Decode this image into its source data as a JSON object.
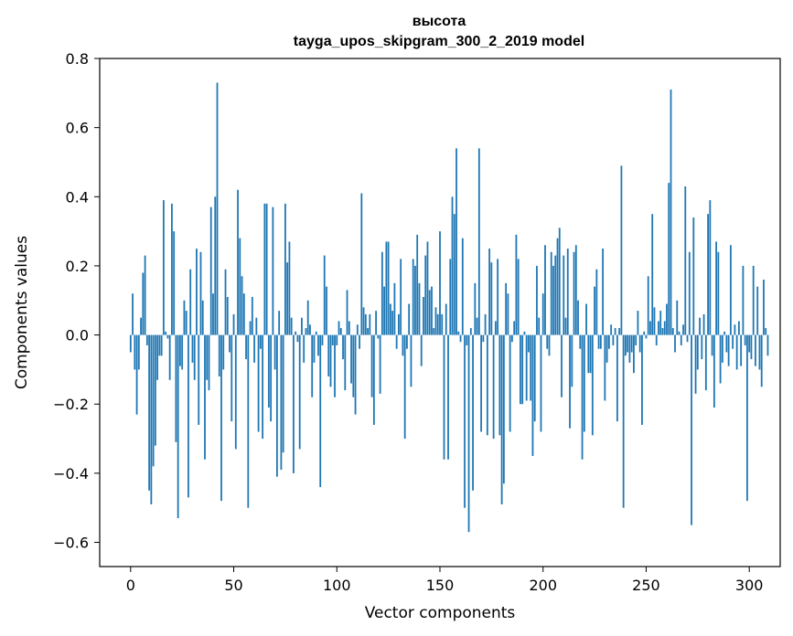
{
  "chart_data": {
    "type": "bar",
    "title": "высота",
    "subtitle": "tayga_upos_skipgram_300_2_2019 model",
    "xlabel": "Vector components",
    "ylabel": "Components values",
    "xlim": [
      -15,
      315
    ],
    "ylim": [
      -0.67,
      0.8
    ],
    "xticks": [
      0,
      50,
      100,
      150,
      200,
      250,
      300
    ],
    "xtick_labels": [
      "0",
      "50",
      "100",
      "150",
      "200",
      "250",
      "300"
    ],
    "yticks": [
      -0.6,
      -0.4,
      -0.2,
      0.0,
      0.2,
      0.4,
      0.6,
      0.8
    ],
    "ytick_labels": [
      "−0.6",
      "−0.4",
      "−0.2",
      "0.0",
      "0.2",
      "0.4",
      "0.6",
      "0.8"
    ],
    "bar_color": "#1f77b4",
    "values": [
      -0.05,
      0.12,
      -0.1,
      -0.23,
      -0.1,
      0.05,
      0.18,
      0.23,
      -0.03,
      -0.45,
      -0.49,
      -0.38,
      -0.32,
      -0.13,
      -0.06,
      -0.06,
      0.39,
      0.01,
      -0.01,
      -0.13,
      0.38,
      0.3,
      -0.31,
      -0.53,
      -0.09,
      -0.1,
      0.1,
      0.07,
      -0.47,
      0.19,
      -0.08,
      -0.13,
      0.25,
      -0.26,
      0.24,
      0.1,
      -0.36,
      -0.13,
      -0.16,
      0.37,
      0.12,
      0.4,
      0.73,
      -0.12,
      -0.48,
      -0.1,
      0.19,
      0.11,
      -0.05,
      -0.25,
      0.06,
      -0.33,
      0.42,
      0.28,
      0.17,
      0.12,
      -0.07,
      -0.5,
      0.04,
      0.11,
      -0.08,
      0.05,
      -0.28,
      -0.04,
      -0.3,
      0.38,
      0.38,
      -0.21,
      -0.25,
      0.37,
      -0.1,
      -0.41,
      0.07,
      -0.39,
      -0.34,
      0.38,
      0.21,
      0.27,
      0.05,
      -0.4,
      0.01,
      -0.02,
      -0.33,
      0.05,
      -0.08,
      0.02,
      0.1,
      0.03,
      -0.18,
      -0.08,
      0.01,
      -0.06,
      -0.44,
      -0.03,
      0.23,
      0.14,
      -0.12,
      -0.15,
      -0.03,
      -0.18,
      -0.03,
      0.04,
      0.02,
      -0.07,
      -0.16,
      0.13,
      0.04,
      -0.14,
      -0.18,
      -0.23,
      0.03,
      -0.04,
      0.41,
      0.08,
      0.06,
      0.02,
      0.06,
      -0.18,
      -0.26,
      0.07,
      -0.01,
      -0.17,
      0.24,
      0.14,
      0.27,
      0.27,
      0.09,
      0.07,
      0.15,
      -0.04,
      0.06,
      0.22,
      -0.06,
      -0.3,
      -0.04,
      0.09,
      -0.15,
      0.22,
      0.2,
      0.29,
      0.15,
      -0.09,
      0.11,
      0.23,
      0.27,
      0.13,
      0.14,
      0.02,
      0.08,
      0.06,
      0.3,
      0.06,
      -0.36,
      0.09,
      -0.36,
      0.22,
      0.4,
      0.35,
      0.54,
      0.01,
      -0.02,
      0.28,
      -0.5,
      -0.03,
      -0.57,
      0.02,
      -0.45,
      0.15,
      0.05,
      0.54,
      -0.28,
      -0.02,
      0.06,
      -0.29,
      0.25,
      0.21,
      -0.3,
      0.04,
      0.22,
      -0.29,
      -0.49,
      -0.43,
      0.15,
      0.12,
      -0.28,
      -0.02,
      0.04,
      0.29,
      0.22,
      -0.2,
      -0.2,
      0.01,
      -0.19,
      -0.05,
      -0.19,
      -0.35,
      -0.25,
      0.2,
      0.05,
      -0.28,
      0.12,
      0.26,
      -0.04,
      -0.06,
      0.24,
      0.2,
      0.23,
      0.28,
      0.31,
      -0.18,
      0.23,
      0.05,
      0.25,
      -0.27,
      -0.15,
      0.24,
      0.26,
      0.1,
      -0.04,
      -0.36,
      -0.28,
      0.09,
      -0.11,
      -0.11,
      -0.29,
      0.14,
      0.19,
      -0.04,
      -0.04,
      0.25,
      -0.19,
      -0.08,
      -0.04,
      0.03,
      -0.03,
      0.02,
      -0.25,
      0.02,
      0.49,
      -0.5,
      -0.06,
      -0.05,
      -0.08,
      -0.05,
      -0.11,
      -0.03,
      0.07,
      -0.05,
      -0.26,
      0.01,
      -0.01,
      0.17,
      0.04,
      0.35,
      0.08,
      -0.03,
      0.04,
      0.07,
      0.02,
      0.04,
      0.09,
      0.44,
      0.71,
      0.02,
      -0.05,
      0.1,
      0.01,
      -0.03,
      0.03,
      0.43,
      -0.02,
      0.24,
      -0.55,
      0.34,
      -0.17,
      -0.1,
      0.05,
      -0.07,
      0.06,
      -0.16,
      0.35,
      0.39,
      -0.06,
      -0.21,
      0.27,
      0.24,
      -0.14,
      -0.08,
      0.01,
      -0.05,
      -0.09,
      0.26,
      -0.04,
      0.03,
      -0.1,
      0.04,
      -0.09,
      0.2,
      -0.03,
      -0.48,
      -0.05,
      -0.07,
      0.2,
      -0.09,
      0.14,
      -0.1,
      -0.15,
      0.16,
      0.02,
      -0.06
    ]
  }
}
